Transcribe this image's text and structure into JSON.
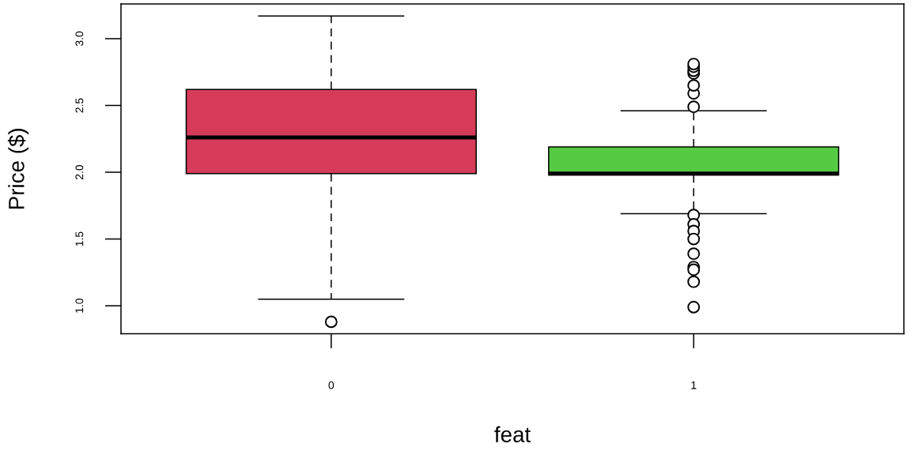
{
  "chart_data": {
    "type": "box",
    "xlabel": "feat",
    "ylabel": "Price ($)",
    "categories": [
      "0",
      "1"
    ],
    "ylim": [
      0.79,
      3.26
    ],
    "yticks": [
      {
        "value": 1,
        "label": "1.0"
      },
      {
        "value": 1.5,
        "label": "1.5"
      },
      {
        "value": 2,
        "label": "2.0"
      },
      {
        "value": 2.5,
        "label": "2.5"
      },
      {
        "value": 3,
        "label": "3.0"
      }
    ],
    "colors": [
      "#d63c5a",
      "#55ca42"
    ],
    "boxes": [
      {
        "low": 1.05,
        "q1": 1.99,
        "median": 2.26,
        "q3": 2.62,
        "high": 3.17,
        "outliers": [
          0.88
        ]
      },
      {
        "low": 1.69,
        "q1": 1.98,
        "median": 1.99,
        "q3": 2.19,
        "high": 2.46,
        "outliers": [
          2.49,
          2.59,
          2.65,
          2.74,
          2.76,
          2.79,
          2.81,
          1.68,
          1.61,
          1.56,
          1.5,
          1.39,
          1.29,
          1.27,
          1.18,
          0.99
        ]
      }
    ]
  }
}
